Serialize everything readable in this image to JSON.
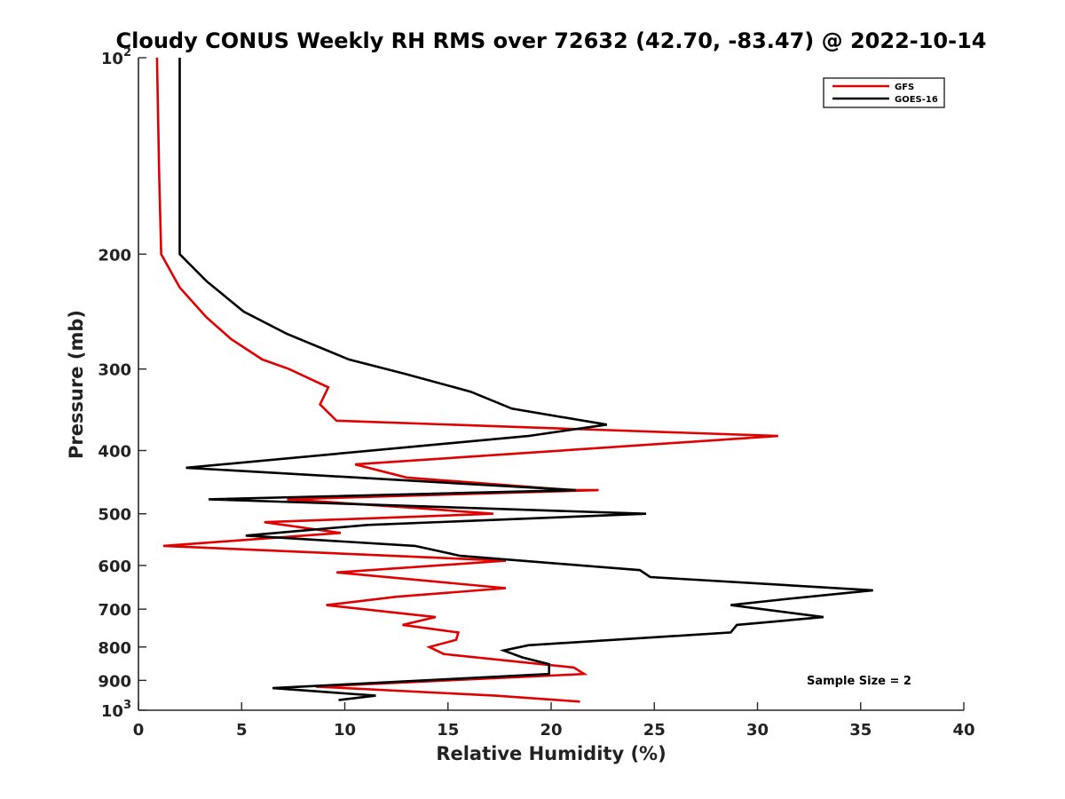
{
  "chart_data": {
    "type": "line",
    "title": "Cloudy CONUS Weekly RH RMS over 72632 (42.70, -83.47) @ 2022-10-14",
    "xlabel": "Relative Humidity (%)",
    "ylabel": "Pressure (mb)",
    "xlim": [
      0,
      40
    ],
    "ylim": [
      100,
      1000
    ],
    "yscale": "log",
    "y_reversed": true,
    "x_ticks": [
      0,
      5,
      10,
      15,
      20,
      25,
      30,
      35,
      40
    ],
    "x_tick_labels": [
      "0",
      "5",
      "10",
      "15",
      "20",
      "25",
      "30",
      "35",
      "40"
    ],
    "y_ticks": [
      100,
      200,
      300,
      400,
      500,
      600,
      700,
      800,
      900,
      1000
    ],
    "y_tick_labels": [
      {
        "base": "10",
        "exp": "2"
      },
      {
        "base": "200",
        "exp": ""
      },
      {
        "base": "300",
        "exp": ""
      },
      {
        "base": "400",
        "exp": ""
      },
      {
        "base": "500",
        "exp": ""
      },
      {
        "base": "600",
        "exp": ""
      },
      {
        "base": "700",
        "exp": ""
      },
      {
        "base": "800",
        "exp": ""
      },
      {
        "base": "900",
        "exp": ""
      },
      {
        "base": "10",
        "exp": "3"
      }
    ],
    "grid": false,
    "legend_position": "top-right",
    "annotation": "Sample Size = 2",
    "series": [
      {
        "name": "GFS",
        "color": "#e00000",
        "points": [
          [
            0.9,
            100
          ],
          [
            1.0,
            150
          ],
          [
            1.1,
            200
          ],
          [
            2.0,
            225
          ],
          [
            3.3,
            250
          ],
          [
            4.5,
            270
          ],
          [
            6.0,
            290
          ],
          [
            7.3,
            300
          ],
          [
            9.2,
            320
          ],
          [
            8.8,
            340
          ],
          [
            9.6,
            360
          ],
          [
            31.0,
            380
          ],
          [
            10.5,
            420
          ],
          [
            13.0,
            440
          ],
          [
            21.0,
            460
          ],
          [
            22.3,
            460
          ],
          [
            7.2,
            475
          ],
          [
            13.5,
            490
          ],
          [
            17.2,
            500
          ],
          [
            6.1,
            515
          ],
          [
            9.8,
            535
          ],
          [
            1.2,
            560
          ],
          [
            17.8,
            590
          ],
          [
            9.6,
            615
          ],
          [
            17.8,
            650
          ],
          [
            12.5,
            670
          ],
          [
            9.1,
            690
          ],
          [
            14.4,
            720
          ],
          [
            12.8,
            740
          ],
          [
            15.5,
            760
          ],
          [
            15.4,
            780
          ],
          [
            14.1,
            800
          ],
          [
            14.8,
            820
          ],
          [
            21.1,
            860
          ],
          [
            21.6,
            880
          ],
          [
            8.6,
            920
          ],
          [
            17.3,
            950
          ],
          [
            21.4,
            970
          ]
        ]
      },
      {
        "name": "GOES-16",
        "color": "#000000",
        "points": [
          [
            2.0,
            100
          ],
          [
            2.0,
            150
          ],
          [
            2.0,
            200
          ],
          [
            3.3,
            220
          ],
          [
            5.1,
            245
          ],
          [
            7.2,
            265
          ],
          [
            10.2,
            290
          ],
          [
            12.9,
            305
          ],
          [
            16.1,
            325
          ],
          [
            18.1,
            345
          ],
          [
            22.7,
            365
          ],
          [
            18.9,
            380
          ],
          [
            2.3,
            425
          ],
          [
            21.2,
            460
          ],
          [
            3.4,
            475
          ],
          [
            24.6,
            500
          ],
          [
            11.1,
            520
          ],
          [
            5.2,
            540
          ],
          [
            13.4,
            560
          ],
          [
            15.6,
            580
          ],
          [
            24.3,
            610
          ],
          [
            24.8,
            625
          ],
          [
            35.6,
            655
          ],
          [
            31.5,
            675
          ],
          [
            28.7,
            690
          ],
          [
            33.2,
            720
          ],
          [
            29.0,
            740
          ],
          [
            28.7,
            760
          ],
          [
            18.9,
            795
          ],
          [
            17.7,
            810
          ],
          [
            18.6,
            830
          ],
          [
            19.9,
            850
          ],
          [
            19.9,
            880
          ],
          [
            6.5,
            925
          ],
          [
            11.5,
            950
          ],
          [
            9.7,
            965
          ]
        ]
      }
    ]
  }
}
